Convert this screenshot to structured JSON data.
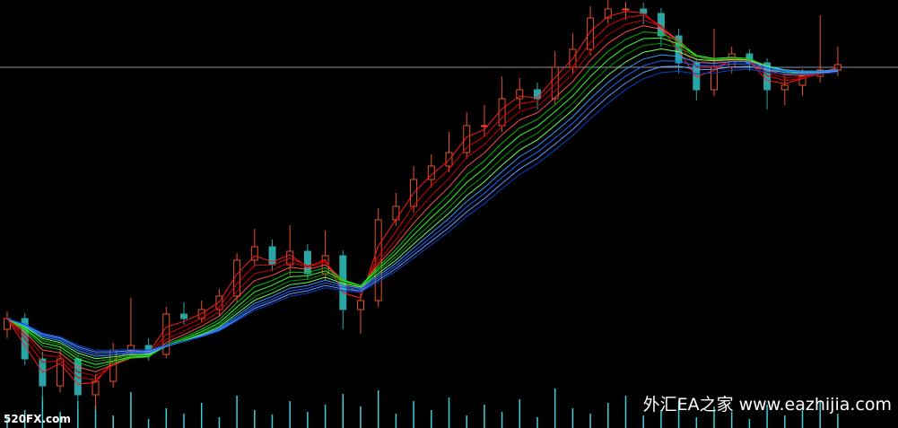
{
  "chart_data": {
    "type": "candlestick",
    "open": [
      110,
      122,
      77,
      47,
      77,
      37,
      52,
      87,
      92,
      82,
      127,
      122,
      132,
      147,
      187,
      202,
      182,
      197,
      172,
      192,
      132,
      142,
      232,
      247,
      277,
      292,
      307,
      337,
      337,
      367,
      377,
      367,
      402,
      422,
      457,
      467,
      467,
      462,
      437,
      407,
      377,
      402,
      417,
      407,
      377,
      382,
      392,
      399
    ],
    "high": [
      130,
      128,
      85,
      90,
      82,
      60,
      95,
      145,
      100,
      135,
      140,
      142,
      155,
      195,
      222,
      210,
      226,
      205,
      220,
      198,
      150,
      245,
      262,
      292,
      305,
      330,
      352,
      360,
      392,
      390,
      385,
      420,
      440,
      470,
      477,
      475,
      474,
      468,
      445,
      412,
      445,
      425,
      422,
      412,
      392,
      400,
      460,
      425
    ],
    "low": [
      100,
      70,
      30,
      40,
      22,
      20,
      45,
      80,
      75,
      78,
      115,
      118,
      125,
      140,
      180,
      175,
      170,
      165,
      165,
      110,
      105,
      135,
      225,
      240,
      268,
      285,
      300,
      325,
      330,
      355,
      355,
      360,
      395,
      415,
      450,
      455,
      450,
      425,
      395,
      365,
      370,
      395,
      398,
      355,
      360,
      370,
      385,
      392
    ],
    "close": [
      122,
      77,
      47,
      77,
      37,
      52,
      87,
      92,
      82,
      127,
      122,
      132,
      147,
      187,
      202,
      182,
      197,
      172,
      192,
      132,
      142,
      232,
      247,
      277,
      292,
      307,
      337,
      337,
      367,
      377,
      367,
      402,
      422,
      457,
      467,
      467,
      462,
      437,
      407,
      377,
      402,
      417,
      407,
      377,
      382,
      392,
      399,
      405
    ],
    "volume": [
      12,
      20,
      35,
      18,
      30,
      25,
      14,
      40,
      10,
      22,
      16,
      28,
      12,
      36,
      20,
      15,
      30,
      18,
      26,
      38,
      24,
      42,
      16,
      30,
      20,
      34,
      14,
      26,
      18,
      32,
      12,
      44,
      22,
      16,
      28,
      36,
      14,
      20,
      30,
      12,
      24,
      18,
      10,
      26,
      14,
      20,
      30,
      16
    ],
    "ylim": [
      0,
      477
    ],
    "vlim": [
      0,
      100
    ],
    "up_color": "#e8502a",
    "down_color": "#2aa5a5",
    "volume_color": "#39d0d8",
    "price_line": 402,
    "price_line_color": "#8794a3",
    "ma_periods": [
      2,
      3,
      4,
      5,
      6,
      7,
      8,
      9,
      10,
      11,
      12,
      13
    ],
    "ma_colors": [
      "#ff1a1a",
      "#e00000",
      "#c00000",
      "#ff4d4d",
      "#00c000",
      "#33ff33",
      "#009900",
      "#66ff66",
      "#3399ff",
      "#1a66ff",
      "#6699ff",
      "#0044cc"
    ]
  },
  "watermark_left": "520FX.com",
  "watermark_right": "外汇EA之家 www.eazhijia.com"
}
